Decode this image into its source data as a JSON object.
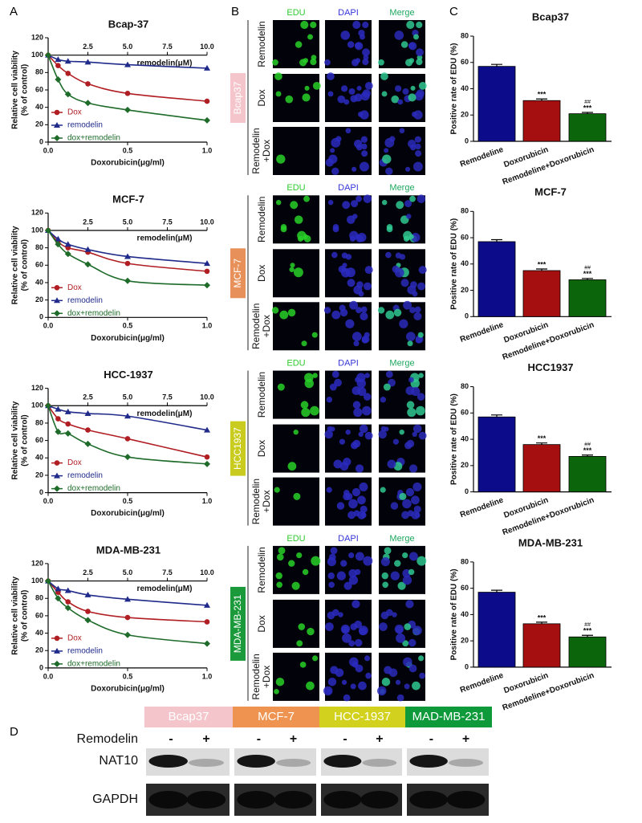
{
  "panel_labels": [
    "A",
    "B",
    "C",
    "D"
  ],
  "chart_data": [
    {
      "type": "line",
      "title": "Bcap-37",
      "xlabel": "Doxorubicin(μg/ml)",
      "x2label": "remodelin(μM)",
      "ylabel": [
        "Relative cell viability",
        "(% of control)"
      ],
      "xlim": [
        0,
        1
      ],
      "xticks": [
        {
          "value": 0,
          "label": "0.0"
        },
        {
          "value": 0.5,
          "label": "0.5"
        },
        {
          "value": 1,
          "label": "1.0"
        }
      ],
      "x2lim": [
        0,
        10
      ],
      "x2ticks": [
        2.5,
        {
          "value": 5,
          "label": "5.0"
        },
        7.5,
        {
          "value": 10,
          "label": "10.0"
        }
      ],
      "ylim": [
        0,
        120
      ],
      "yticks": [
        0,
        20,
        40,
        60,
        80,
        100,
        120
      ],
      "x": [
        0,
        0.0625,
        0.125,
        0.25,
        0.5,
        1
      ],
      "series": [
        {
          "name": "Dox",
          "color": "#b01e23",
          "marker": "circle",
          "values": [
            100,
            88,
            79,
            67,
            56,
            47
          ]
        },
        {
          "name": "remodelin",
          "color": "#1f2a8a",
          "marker": "triangle",
          "axis": "x2",
          "x": [
            0,
            0.625,
            1.25,
            2.5,
            5,
            10
          ],
          "values": [
            100,
            95,
            93,
            92,
            89,
            85
          ]
        },
        {
          "name": "dox+remodelin",
          "color": "#1e6b2a",
          "marker": "diamond",
          "values": [
            100,
            72,
            55,
            45,
            37,
            25
          ]
        }
      ]
    },
    {
      "type": "line",
      "title": "MCF-7",
      "xlabel": "Doxorubicin(μg/ml)",
      "x2label": "remodelin(μM)",
      "ylabel": [
        "Relative cell viability",
        "(% of control)"
      ],
      "xlim": [
        0,
        1
      ],
      "xticks": [
        {
          "value": 0,
          "label": "0.0"
        },
        {
          "value": 0.5,
          "label": "0.5"
        },
        {
          "value": 1,
          "label": "1.0"
        }
      ],
      "x2lim": [
        0,
        10
      ],
      "x2ticks": [
        2.5,
        {
          "value": 5,
          "label": "5.0"
        },
        7.5,
        {
          "value": 10,
          "label": "10.0"
        }
      ],
      "ylim": [
        0,
        120
      ],
      "yticks": [
        0,
        20,
        40,
        60,
        80,
        100,
        120
      ],
      "x": [
        0,
        0.0625,
        0.125,
        0.25,
        0.5,
        1
      ],
      "series": [
        {
          "name": "Dox",
          "color": "#b01e23",
          "marker": "circle",
          "values": [
            100,
            87,
            80,
            75,
            62,
            53
          ]
        },
        {
          "name": "remodelin",
          "color": "#1f2a8a",
          "marker": "triangle",
          "axis": "x2",
          "x": [
            0,
            0.625,
            1.25,
            2.5,
            5,
            10
          ],
          "values": [
            100,
            90,
            84,
            78,
            70,
            62
          ]
        },
        {
          "name": "dox+remodelin",
          "color": "#1e6b2a",
          "marker": "diamond",
          "values": [
            100,
            84,
            73,
            61,
            42,
            37
          ]
        }
      ]
    },
    {
      "type": "line",
      "title": "HCC-1937",
      "xlabel": "Doxorubicin(μg/ml)",
      "x2label": "remodelin(μM)",
      "ylabel": [
        "Relative cell viability",
        "(% of control)"
      ],
      "xlim": [
        0,
        1
      ],
      "xticks": [
        {
          "value": 0,
          "label": "0.0"
        },
        {
          "value": 0.5,
          "label": "0.5"
        },
        {
          "value": 1,
          "label": "1.0"
        }
      ],
      "x2lim": [
        0,
        10
      ],
      "x2ticks": [
        2.5,
        {
          "value": 5,
          "label": "5.0"
        },
        7.5,
        {
          "value": 10,
          "label": "10.0"
        }
      ],
      "ylim": [
        0,
        120
      ],
      "yticks": [
        0,
        20,
        40,
        60,
        80,
        100,
        120
      ],
      "x": [
        0,
        0.0625,
        0.125,
        0.25,
        0.5,
        1
      ],
      "series": [
        {
          "name": "Dox",
          "color": "#b01e23",
          "marker": "circle",
          "values": [
            100,
            85,
            79,
            72,
            62,
            41
          ]
        },
        {
          "name": "remodelin",
          "color": "#1f2a8a",
          "marker": "triangle",
          "axis": "x2",
          "x": [
            0,
            0.625,
            1.25,
            2.5,
            5,
            10
          ],
          "values": [
            100,
            96,
            93,
            91,
            88,
            72
          ]
        },
        {
          "name": "dox+remodelin",
          "color": "#1e6b2a",
          "marker": "diamond",
          "values": [
            100,
            70,
            68,
            56,
            41,
            33
          ]
        }
      ]
    },
    {
      "type": "line",
      "title": "MDA-MB-231",
      "xlabel": "Doxorubicin(μg/ml)",
      "x2label": "remodelin(μM)",
      "ylabel": [
        "Relative cell viability",
        "(% of control)"
      ],
      "xlim": [
        0,
        1
      ],
      "xticks": [
        {
          "value": 0,
          "label": "0.0"
        },
        {
          "value": 0.5,
          "label": "0.5"
        },
        {
          "value": 1,
          "label": "1.0"
        }
      ],
      "x2lim": [
        0,
        10
      ],
      "x2ticks": [
        2.5,
        {
          "value": 5,
          "label": "5.0"
        },
        7.5,
        {
          "value": 10,
          "label": "10.0"
        }
      ],
      "ylim": [
        0,
        120
      ],
      "yticks": [
        0,
        20,
        40,
        60,
        80,
        100,
        120
      ],
      "x": [
        0,
        0.0625,
        0.125,
        0.25,
        0.5,
        1
      ],
      "series": [
        {
          "name": "Dox",
          "color": "#b01e23",
          "marker": "circle",
          "values": [
            100,
            87,
            76,
            65,
            58,
            53
          ]
        },
        {
          "name": "remodelin",
          "color": "#1f2a8a",
          "marker": "triangle",
          "axis": "x2",
          "x": [
            0,
            0.625,
            1.25,
            2.5,
            5,
            10
          ],
          "values": [
            100,
            91,
            89,
            84,
            79,
            72
          ]
        },
        {
          "name": "dox+remodelin",
          "color": "#1e6b2a",
          "marker": "diamond",
          "values": [
            100,
            80,
            69,
            55,
            38,
            28
          ]
        }
      ]
    },
    {
      "type": "bar",
      "title": "Bcap37",
      "ylabel": "Positive rate of EDU (%)",
      "categories": [
        "Remodeline",
        "Doxorubicin",
        "Remodeline+Doxorubicin"
      ],
      "values": [
        57,
        31,
        21
      ],
      "errors": [
        1.5,
        1.2,
        1
      ],
      "colors": [
        "#0c0c8a",
        "#a50f0f",
        "#0b650b"
      ],
      "ylim": [
        0,
        80
      ],
      "yticks": [
        0,
        20,
        40,
        60,
        80
      ],
      "significance": [
        null,
        "***",
        "***"
      ],
      "significance2": [
        null,
        null,
        "##"
      ]
    },
    {
      "type": "bar",
      "title": "MCF-7",
      "ylabel": "Positive rate of EDU (%)",
      "categories": [
        "Remodeline",
        "Doxorubicin",
        "Remodeline+Doxorubicin"
      ],
      "values": [
        57,
        35,
        28
      ],
      "errors": [
        1.5,
        1.2,
        1
      ],
      "colors": [
        "#0c0c8a",
        "#a50f0f",
        "#0b650b"
      ],
      "ylim": [
        0,
        80
      ],
      "yticks": [
        0,
        20,
        40,
        60,
        80
      ],
      "significance": [
        null,
        "***",
        "***"
      ],
      "significance2": [
        null,
        null,
        "##"
      ]
    },
    {
      "type": "bar",
      "title": "HCC1937",
      "ylabel": "Positive rate of EDU (%)",
      "categories": [
        "Remodeline",
        "Doxorubicin",
        "Remodeline+Doxorubicin"
      ],
      "values": [
        57,
        36,
        27
      ],
      "errors": [
        1.5,
        1.2,
        1
      ],
      "colors": [
        "#0c0c8a",
        "#a50f0f",
        "#0b650b"
      ],
      "ylim": [
        0,
        80
      ],
      "yticks": [
        0,
        20,
        40,
        60,
        80
      ],
      "significance": [
        null,
        "***",
        "***"
      ],
      "significance2": [
        null,
        null,
        "##"
      ]
    },
    {
      "type": "bar",
      "title": "MDA-MB-231",
      "ylabel": "Positive rate of EDU (%)",
      "categories": [
        "Remodeline",
        "Doxorubicin",
        "Remodeline+Doxorubicin"
      ],
      "values": [
        57,
        33,
        23
      ],
      "errors": [
        1.5,
        1.2,
        1.2
      ],
      "colors": [
        "#0c0c8a",
        "#a50f0f",
        "#0b650b"
      ],
      "ylim": [
        0,
        80
      ],
      "yticks": [
        0,
        20,
        40,
        60,
        80
      ],
      "significance": [
        null,
        "***",
        "***"
      ],
      "significance2": [
        null,
        null,
        "##"
      ]
    }
  ],
  "microscopy": {
    "columns": [
      {
        "label": "EDU",
        "color": "#2ecb2e"
      },
      {
        "label": "DAPI",
        "color": "#3535d8"
      },
      {
        "label": "Merge",
        "color": "#1fa860"
      }
    ],
    "rows": [
      [
        "Remodelin"
      ],
      [
        "Dox"
      ],
      [
        "Remodelin",
        "+Dox"
      ]
    ],
    "cell_lines": [
      {
        "label": "Bcap37",
        "color": "#f4c6cc"
      },
      {
        "label": "MCF-7",
        "color": "#e8905a"
      },
      {
        "label": "HCC1937",
        "color": "#c9cc1e"
      },
      {
        "label": "MDA-MB-231",
        "color": "#1a9a3a"
      }
    ]
  },
  "western_blot": {
    "cell_lines": [
      {
        "label": "Bcap37",
        "color": "#f4c6cc"
      },
      {
        "label": "MCF-7",
        "color": "#ee9450"
      },
      {
        "label": "HCC-1937",
        "color": "#d2d21e"
      },
      {
        "label": "MAD-MB-231",
        "color": "#0e9a3a"
      }
    ],
    "treatment_label": "Remodelin",
    "treatment_signs": [
      "-",
      "+"
    ],
    "proteins": [
      "NAT10",
      "GAPDH"
    ]
  }
}
